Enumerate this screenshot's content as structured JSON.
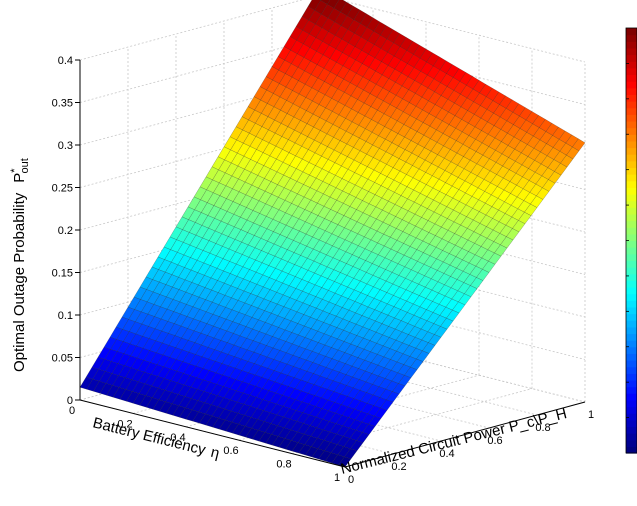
{
  "chart_data": {
    "type": "surface3d",
    "title": "",
    "zlabel": "Optimal Outage Probability",
    "zlabel_symbol": "P",
    "zlabel_sup": "*",
    "zlabel_sub": "out",
    "xlabel": "Battery Efficiency",
    "xlabel_symbol": "η",
    "ylabel": "Normalized Circuit Power P_c\\P_H",
    "xlim": [
      0,
      1
    ],
    "ylim": [
      0,
      1
    ],
    "zlim": [
      0,
      0.4
    ],
    "xticks": [
      "0",
      "0.2",
      "0.4",
      "0.6",
      "0.8",
      "1"
    ],
    "yticks": [
      "0",
      "0.2",
      "0.4",
      "0.6",
      "0.8",
      "1"
    ],
    "zticks": [
      "0",
      "0.05",
      "0.1",
      "0.15",
      "0.2",
      "0.25",
      "0.3",
      "0.35",
      "0.4"
    ],
    "corner_values": [
      {
        "x": 0,
        "y": 0,
        "z": 0.015
      },
      {
        "x": 1,
        "y": 0,
        "z": 0.0
      },
      {
        "x": 0,
        "y": 1,
        "z": 0.41
      },
      {
        "x": 1,
        "y": 1,
        "z": 0.305
      }
    ],
    "colormap": "jet",
    "colorbar": true,
    "grid": true
  }
}
